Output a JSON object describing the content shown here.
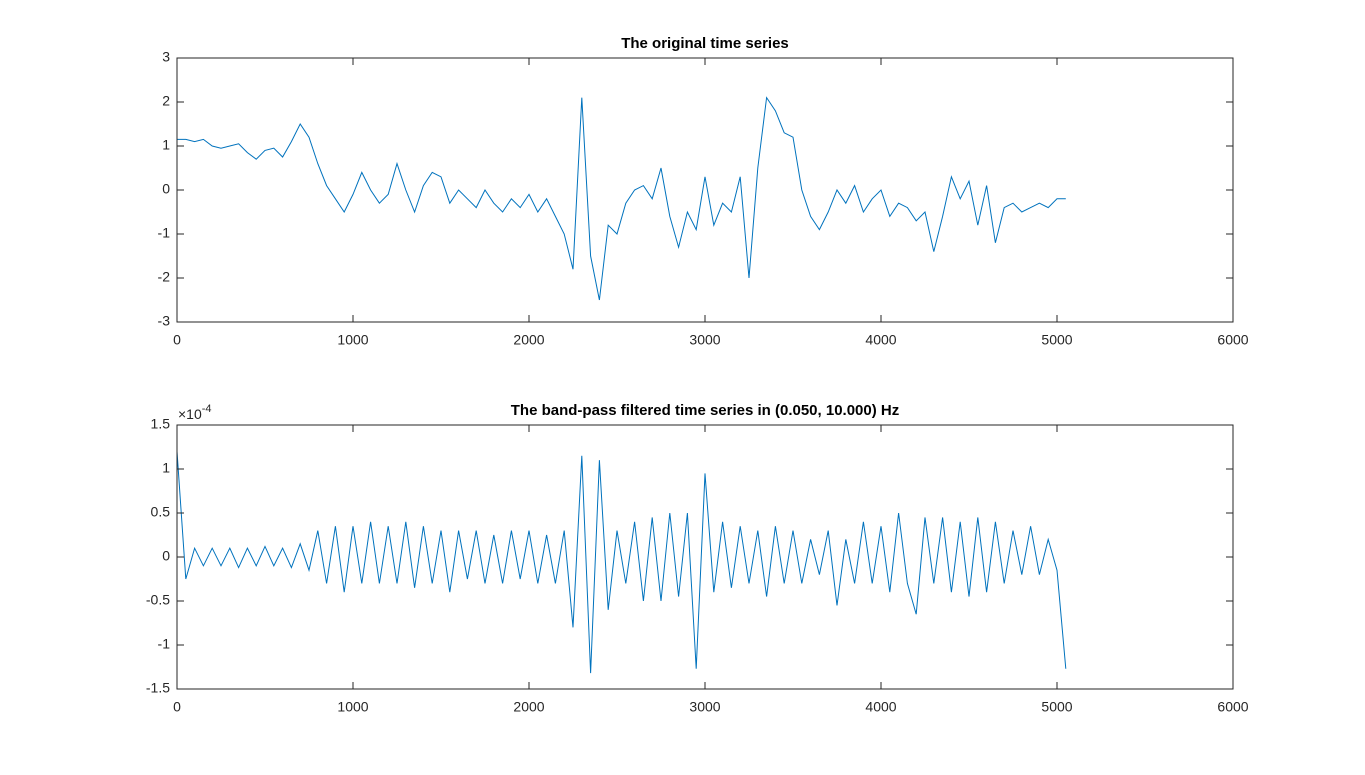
{
  "chart_data": [
    {
      "type": "line",
      "title": "The original time series",
      "x": [
        0,
        50,
        100,
        150,
        200,
        250,
        300,
        350,
        400,
        450,
        500,
        550,
        600,
        650,
        700,
        750,
        800,
        850,
        900,
        950,
        1000,
        1050,
        1100,
        1150,
        1200,
        1250,
        1300,
        1350,
        1400,
        1450,
        1500,
        1550,
        1600,
        1650,
        1700,
        1750,
        1800,
        1850,
        1900,
        1950,
        2000,
        2050,
        2100,
        2150,
        2200,
        2250,
        2300,
        2350,
        2400,
        2450,
        2500,
        2550,
        2600,
        2650,
        2700,
        2750,
        2800,
        2850,
        2900,
        2950,
        3000,
        3050,
        3100,
        3150,
        3200,
        3250,
        3300,
        3350,
        3400,
        3450,
        3500,
        3550,
        3600,
        3650,
        3700,
        3750,
        3800,
        3850,
        3900,
        3950,
        4000,
        4050,
        4100,
        4150,
        4200,
        4250,
        4300,
        4350,
        4400,
        4450,
        4500,
        4550,
        4600,
        4650,
        4700,
        4750,
        4800,
        4850,
        4900,
        4950,
        5000,
        5050
      ],
      "series": [
        {
          "color": "#0072bd",
          "values": [
            1.15,
            1.15,
            1.1,
            1.15,
            1.0,
            0.95,
            1.0,
            1.05,
            0.85,
            0.7,
            0.9,
            0.95,
            0.75,
            1.1,
            1.5,
            1.2,
            0.6,
            0.1,
            -0.2,
            -0.5,
            -0.1,
            0.4,
            0.0,
            -0.3,
            -0.1,
            0.6,
            0.0,
            -0.5,
            0.1,
            0.4,
            0.3,
            -0.3,
            0.0,
            -0.2,
            -0.4,
            0.0,
            -0.3,
            -0.5,
            -0.2,
            -0.4,
            -0.1,
            -0.5,
            -0.2,
            -0.6,
            -1.0,
            -1.8,
            2.1,
            -1.5,
            -2.5,
            -0.8,
            -1.0,
            -0.3,
            0.0,
            0.1,
            -0.2,
            0.5,
            -0.6,
            -1.3,
            -0.5,
            -0.9,
            0.3,
            -0.8,
            -0.3,
            -0.5,
            0.3,
            -2.0,
            0.5,
            2.1,
            1.8,
            1.3,
            1.2,
            0.0,
            -0.6,
            -0.9,
            -0.5,
            0.0,
            -0.3,
            0.1,
            -0.5,
            -0.2,
            0.0,
            -0.6,
            -0.3,
            -0.4,
            -0.7,
            -0.5,
            -1.4,
            -0.6,
            0.3,
            -0.2,
            0.2,
            -0.8,
            0.1,
            -1.2,
            -0.4,
            -0.3,
            -0.5,
            -0.4,
            -0.3,
            -0.4,
            -0.2,
            -0.2
          ]
        }
      ],
      "xlim": [
        0,
        6000
      ],
      "xticks": [
        0,
        1000,
        2000,
        3000,
        4000,
        5000,
        6000
      ],
      "ylim": [
        -3,
        3
      ],
      "yticks": [
        -3,
        -2,
        -1,
        0,
        1,
        2,
        3
      ]
    },
    {
      "type": "line",
      "title": "The band-pass filtered time series in (0.050, 10.000) Hz",
      "x": [
        0,
        50,
        100,
        150,
        200,
        250,
        300,
        350,
        400,
        450,
        500,
        550,
        600,
        650,
        700,
        750,
        800,
        850,
        900,
        950,
        1000,
        1050,
        1100,
        1150,
        1200,
        1250,
        1300,
        1350,
        1400,
        1450,
        1500,
        1550,
        1600,
        1650,
        1700,
        1750,
        1800,
        1850,
        1900,
        1950,
        2000,
        2050,
        2100,
        2150,
        2200,
        2250,
        2300,
        2350,
        2400,
        2450,
        2500,
        2550,
        2600,
        2650,
        2700,
        2750,
        2800,
        2850,
        2900,
        2950,
        3000,
        3050,
        3100,
        3150,
        3200,
        3250,
        3300,
        3350,
        3400,
        3450,
        3500,
        3550,
        3600,
        3650,
        3700,
        3750,
        3800,
        3850,
        3900,
        3950,
        4000,
        4050,
        4100,
        4150,
        4200,
        4250,
        4300,
        4350,
        4400,
        4450,
        4500,
        4550,
        4600,
        4650,
        4700,
        4750,
        4800,
        4850,
        4900,
        4950,
        5000,
        5050
      ],
      "series": [
        {
          "color": "#0072bd",
          "values": [
            1.2,
            -0.25,
            0.1,
            -0.1,
            0.1,
            -0.1,
            0.1,
            -0.12,
            0.1,
            -0.1,
            0.12,
            -0.1,
            0.1,
            -0.12,
            0.15,
            -0.15,
            0.3,
            -0.3,
            0.35,
            -0.4,
            0.35,
            -0.3,
            0.4,
            -0.3,
            0.35,
            -0.3,
            0.4,
            -0.35,
            0.35,
            -0.3,
            0.3,
            -0.4,
            0.3,
            -0.25,
            0.3,
            -0.3,
            0.25,
            -0.3,
            0.3,
            -0.25,
            0.3,
            -0.3,
            0.25,
            -0.3,
            0.3,
            -0.8,
            1.15,
            -1.32,
            1.1,
            -0.6,
            0.3,
            -0.3,
            0.4,
            -0.5,
            0.45,
            -0.5,
            0.5,
            -0.45,
            0.5,
            -1.27,
            0.95,
            -0.4,
            0.4,
            -0.35,
            0.35,
            -0.3,
            0.3,
            -0.45,
            0.35,
            -0.3,
            0.3,
            -0.3,
            0.2,
            -0.2,
            0.3,
            -0.55,
            0.2,
            -0.3,
            0.4,
            -0.3,
            0.35,
            -0.4,
            0.5,
            -0.3,
            -0.65,
            0.45,
            -0.3,
            0.45,
            -0.4,
            0.4,
            -0.45,
            0.45,
            -0.4,
            0.4,
            -0.3,
            0.3,
            -0.2,
            0.35,
            -0.2,
            0.2,
            -0.15,
            -1.27
          ]
        }
      ],
      "xlim": [
        0,
        6000
      ],
      "xticks": [
        0,
        1000,
        2000,
        3000,
        4000,
        5000,
        6000
      ],
      "ylim": [
        -1.5,
        1.5
      ],
      "yticks": [
        -1.5,
        -1,
        -0.5,
        0,
        0.5,
        1,
        1.5
      ],
      "y_exponent_label": {
        "base": "×10",
        "exponent": "-4"
      }
    }
  ]
}
